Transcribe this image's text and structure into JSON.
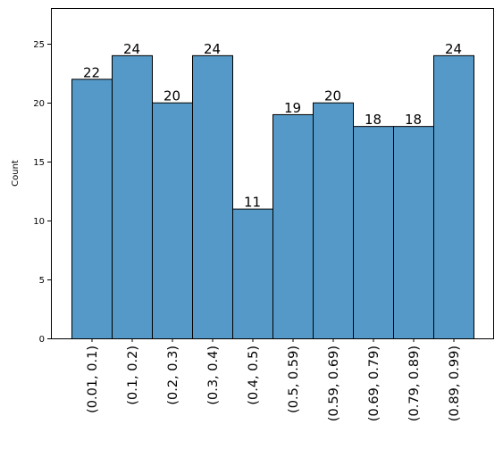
{
  "chart_data": {
    "type": "bar",
    "categories": [
      "(0.01, 0.1)",
      "(0.1, 0.2)",
      "(0.2, 0.3)",
      "(0.3, 0.4)",
      "(0.4, 0.5)",
      "(0.5, 0.59)",
      "(0.59, 0.69)",
      "(0.69, 0.79)",
      "(0.79, 0.89)",
      "(0.89, 0.99)"
    ],
    "values": [
      22,
      24,
      20,
      24,
      11,
      19,
      20,
      18,
      18,
      24
    ],
    "data_labels": [
      "22",
      "24",
      "20",
      "24",
      "11",
      "19",
      "20",
      "18",
      "18",
      "24"
    ],
    "title": "",
    "xlabel": "",
    "ylabel": "Count",
    "ylim": [
      0,
      28
    ],
    "yticks": [
      0,
      5,
      10,
      15,
      20,
      25
    ],
    "ytick_labels": [
      "0",
      "5",
      "10",
      "15",
      "20",
      "25"
    ],
    "grid": false,
    "legend": "none",
    "bar_color": "#5499c7",
    "edge_color": "#000000"
  }
}
